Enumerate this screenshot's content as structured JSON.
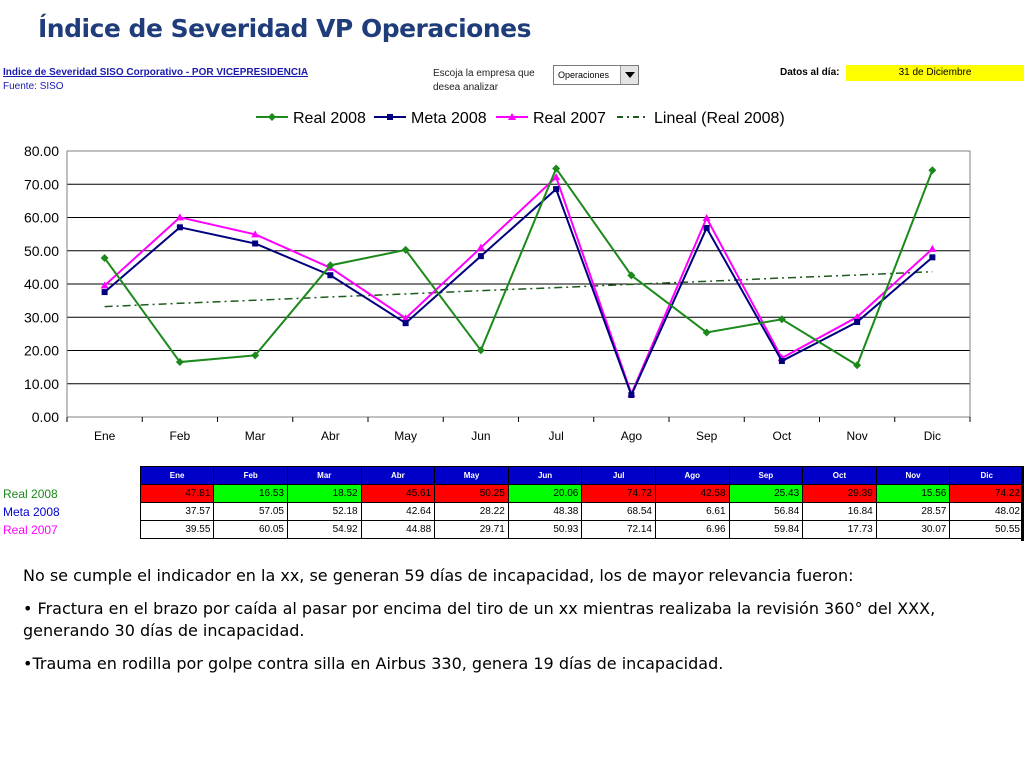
{
  "page": {
    "title": "Índice de Severidad VP Operaciones"
  },
  "header": {
    "report_link": "Indice de Severidad SISO Corporativo - POR VICEPRESIDENCIA",
    "source": "Fuente: SISO",
    "prompt_line1": "Escoja la empresa que",
    "prompt_line2": "desea analizar",
    "company_selected": "Operaciones",
    "date_label": "Datos al día:",
    "date_value": "31 de Diciembre"
  },
  "chart_data": {
    "type": "line",
    "categories": [
      "Ene",
      "Feb",
      "Mar",
      "Abr",
      "May",
      "Jun",
      "Jul",
      "Ago",
      "Sep",
      "Oct",
      "Nov",
      "Dic"
    ],
    "ylim": [
      0,
      80
    ],
    "yticks": [
      "0.00",
      "10.00",
      "20.00",
      "30.00",
      "40.00",
      "50.00",
      "60.00",
      "70.00",
      "80.00"
    ],
    "grid": true,
    "legend_position": "top",
    "series": [
      {
        "name": "Real 2008",
        "color": "#1b8a1b",
        "marker": "diamond",
        "values": [
          47.81,
          16.53,
          18.52,
          45.61,
          50.25,
          20.06,
          74.72,
          42.58,
          25.43,
          29.39,
          15.56,
          74.22
        ]
      },
      {
        "name": "Meta 2008",
        "color": "#00007f",
        "marker": "square",
        "values": [
          37.57,
          57.05,
          52.18,
          42.64,
          28.22,
          48.38,
          68.54,
          6.61,
          56.84,
          16.84,
          28.57,
          48.02
        ]
      },
      {
        "name": "Real 2007",
        "color": "#ff00ff",
        "marker": "triangle",
        "values": [
          39.55,
          60.05,
          54.92,
          44.88,
          29.71,
          50.93,
          72.14,
          6.96,
          59.84,
          17.73,
          30.07,
          50.55
        ]
      },
      {
        "name": "Lineal (Real 2008)",
        "color": "#1f5a1f",
        "marker": "none",
        "dashed": true,
        "values": [
          33.2,
          34.2,
          35.1,
          36.1,
          37.0,
          38.0,
          38.9,
          39.9,
          40.8,
          41.8,
          42.7,
          43.7
        ]
      }
    ],
    "legend_labels": [
      "Real 2008",
      "Meta 2008",
      "Real 2007",
      "Lineal (Real 2008)"
    ]
  },
  "table": {
    "months": [
      "Ene",
      "Feb",
      "Mar",
      "Abr",
      "May",
      "Jun",
      "Jul",
      "Ago",
      "Sep",
      "Oct",
      "Nov",
      "Dic"
    ],
    "rows": [
      {
        "label": "Real 2008",
        "label_color": "#1b8a1b",
        "values": [
          "47.81",
          "16.53",
          "18.52",
          "45.61",
          "50.25",
          "20.06",
          "74.72",
          "42.58",
          "25.43",
          "29.39",
          "15.56",
          "74.22"
        ],
        "cell_colors": [
          "#ff0000",
          "#00ff00",
          "#00ff00",
          "#ff0000",
          "#ff0000",
          "#00ff00",
          "#ff0000",
          "#ff0000",
          "#00ff00",
          "#ff0000",
          "#00ff00",
          "#ff0000"
        ]
      },
      {
        "label": "Meta 2008",
        "label_color": "#0000cc",
        "values": [
          "37.57",
          "57.05",
          "52.18",
          "42.64",
          "28.22",
          "48.38",
          "68.54",
          "6.61",
          "56.84",
          "16.84",
          "28.57",
          "48.02"
        ]
      },
      {
        "label": "Real 2007",
        "label_color": "#ff00ff",
        "values": [
          "39.55",
          "60.05",
          "54.92",
          "44.88",
          "29.71",
          "50.93",
          "72.14",
          "6.96",
          "59.84",
          "17.73",
          "30.07",
          "50.55"
        ]
      }
    ]
  },
  "notes": {
    "p1": "No se cumple el indicador en la xx, se generan 59 días de incapacidad, los de mayor relevancia fueron:",
    "p2": "• Fractura en el brazo por caída al pasar por encima del tiro de un xx mientras realizaba la revisión 360° del XXX, generando 30 días de incapacidad.",
    "p3": "•Trauma en rodilla por golpe contra silla en Airbus 330, genera 19 días de incapacidad."
  }
}
